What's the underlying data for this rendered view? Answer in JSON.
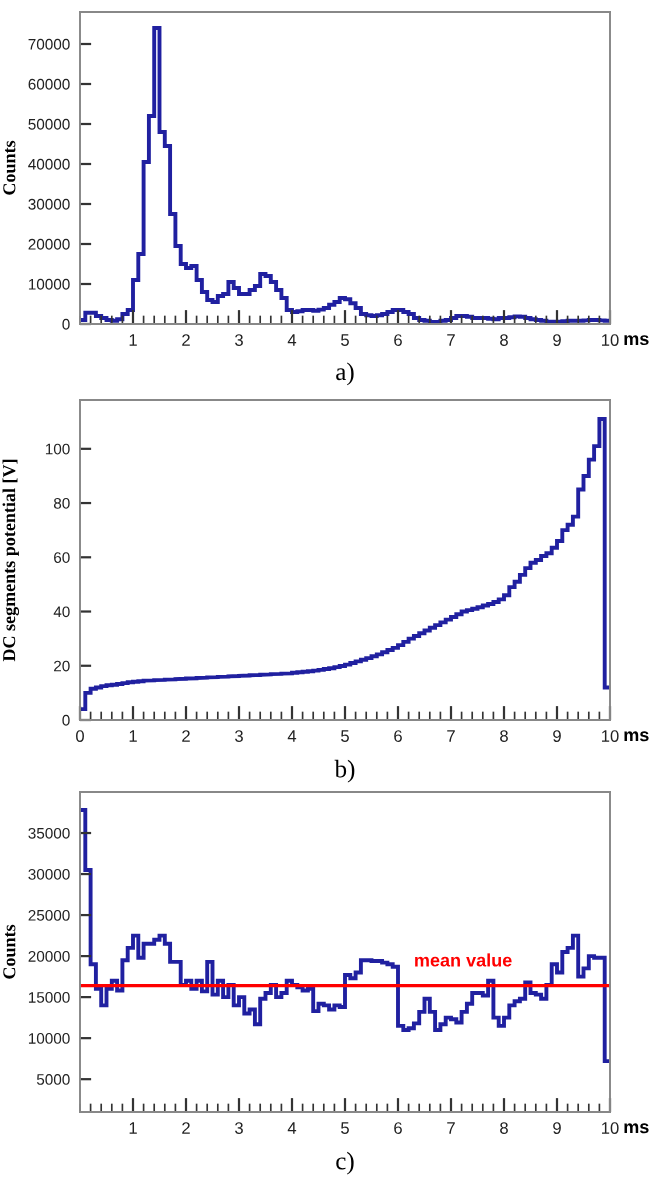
{
  "chart_data": [
    {
      "type": "histogram",
      "xlabel": "ms",
      "ylabel": "Counts",
      "annotations": [
        "a)"
      ],
      "color": "#2020a0",
      "grid": false,
      "bins": [
        0,
        0.1,
        0.2,
        0.3,
        0.4,
        0.5,
        0.6,
        0.7,
        0.8,
        0.9,
        1,
        1.1,
        1.2,
        1.3,
        1.4,
        1.5,
        1.6,
        1.7,
        1.8,
        1.9,
        2,
        2.1,
        2.2,
        2.3,
        2.4,
        2.5,
        2.6,
        2.7,
        2.8,
        2.9,
        3,
        3.1,
        3.2,
        3.3,
        3.4,
        3.5,
        3.6,
        3.7,
        3.8,
        3.9,
        4,
        4.1,
        4.2,
        4.3,
        4.4,
        4.5,
        4.6,
        4.7,
        4.8,
        4.9,
        5,
        5.1,
        5.2,
        5.3,
        5.4,
        5.5,
        5.6,
        5.7,
        5.8,
        5.9,
        6,
        6.1,
        6.2,
        6.3,
        6.4,
        6.5,
        6.6,
        6.7,
        6.8,
        6.9,
        7,
        7.1,
        7.2,
        7.3,
        7.4,
        7.5,
        7.6,
        7.7,
        7.8,
        7.9,
        8,
        8.1,
        8.2,
        8.3,
        8.4,
        8.5,
        8.6,
        8.7,
        8.8,
        8.9,
        9,
        9.1,
        9.2,
        9.3,
        9.4,
        9.5,
        9.6,
        9.7,
        9.8,
        9.9,
        10
      ],
      "values": [
        1000,
        2800,
        2800,
        2000,
        1500,
        1000,
        800,
        1200,
        2500,
        3500,
        11000,
        17500,
        40500,
        52000,
        74000,
        48000,
        44500,
        27500,
        19500,
        15000,
        14000,
        14500,
        11000,
        8000,
        6000,
        5500,
        7000,
        7500,
        10500,
        9000,
        7500,
        7500,
        8500,
        9500,
        12500,
        12000,
        10500,
        8500,
        6500,
        3500,
        3000,
        3200,
        3500,
        3500,
        3300,
        3600,
        4000,
        4800,
        5500,
        6500,
        6200,
        5200,
        4000,
        2500,
        2200,
        2000,
        2200,
        2500,
        3000,
        3500,
        3500,
        3000,
        2500,
        1500,
        1000,
        800,
        500,
        500,
        800,
        1000,
        1500,
        2000,
        2000,
        1800,
        1500,
        1500,
        1500,
        1300,
        1200,
        1500,
        1500,
        1700,
        1900,
        1800,
        1500,
        1200,
        1000,
        800,
        600,
        600,
        600,
        700,
        800,
        800,
        800,
        900,
        1000,
        1000,
        900,
        800
      ],
      "xlim": [
        0,
        10
      ],
      "ylim": [
        0,
        78000
      ],
      "xticks": [
        1,
        2,
        3,
        4,
        5,
        6,
        7,
        8,
        9,
        10
      ],
      "yticks": [
        0,
        10000,
        20000,
        30000,
        40000,
        50000,
        60000,
        70000
      ]
    },
    {
      "type": "histogram",
      "xlabel": "ms",
      "ylabel": "DC segments potential [V]",
      "annotations": [
        "b)"
      ],
      "color": "#2020a0",
      "grid": false,
      "bins": [
        0,
        0.1,
        0.2,
        0.3,
        0.4,
        0.5,
        0.6,
        0.7,
        0.8,
        0.9,
        1,
        1.1,
        1.2,
        1.3,
        1.4,
        1.5,
        1.6,
        1.7,
        1.8,
        1.9,
        2,
        2.1,
        2.2,
        2.3,
        2.4,
        2.5,
        2.6,
        2.7,
        2.8,
        2.9,
        3,
        3.1,
        3.2,
        3.3,
        3.4,
        3.5,
        3.6,
        3.7,
        3.8,
        3.9,
        4,
        4.1,
        4.2,
        4.3,
        4.4,
        4.5,
        4.6,
        4.7,
        4.8,
        4.9,
        5,
        5.1,
        5.2,
        5.3,
        5.4,
        5.5,
        5.6,
        5.7,
        5.8,
        5.9,
        6,
        6.1,
        6.2,
        6.3,
        6.4,
        6.5,
        6.6,
        6.7,
        6.8,
        6.9,
        7,
        7.1,
        7.2,
        7.3,
        7.4,
        7.5,
        7.6,
        7.7,
        7.8,
        7.9,
        8,
        8.1,
        8.2,
        8.3,
        8.4,
        8.5,
        8.6,
        8.7,
        8.8,
        8.9,
        9,
        9.1,
        9.2,
        9.3,
        9.4,
        9.5,
        9.6,
        9.7,
        9.8,
        9.9,
        10
      ],
      "values": [
        4,
        10,
        11.5,
        12,
        12.5,
        12.8,
        13,
        13.3,
        13.6,
        13.9,
        14.1,
        14.3,
        14.5,
        14.6,
        14.7,
        14.8,
        14.9,
        15,
        15.1,
        15.2,
        15.3,
        15.4,
        15.5,
        15.6,
        15.7,
        15.8,
        15.9,
        16,
        16.1,
        16.2,
        16.3,
        16.4,
        16.5,
        16.6,
        16.7,
        16.8,
        16.9,
        17,
        17.1,
        17.2,
        17.4,
        17.6,
        17.8,
        18,
        18.2,
        18.5,
        18.8,
        19.1,
        19.5,
        19.9,
        20.4,
        21,
        21.6,
        22.2,
        22.8,
        23.5,
        24.2,
        25,
        25.8,
        26.6,
        27.6,
        28.8,
        30,
        31,
        32,
        33,
        34,
        35,
        36,
        37,
        38,
        39,
        40,
        40.5,
        41,
        41.6,
        42.2,
        42.8,
        43.5,
        44.5,
        46,
        49,
        51,
        53.5,
        56,
        58,
        59,
        60.5,
        61.5,
        63.5,
        66,
        70,
        72,
        75,
        85,
        90,
        96,
        101,
        111,
        12
      ],
      "xlim": [
        0,
        10
      ],
      "ylim": [
        0,
        118
      ],
      "xticks": [
        0,
        1,
        2,
        3,
        4,
        5,
        6,
        7,
        8,
        9,
        10
      ],
      "yticks": [
        0,
        20,
        40,
        60,
        80,
        100
      ]
    },
    {
      "type": "histogram",
      "xlabel": "ms",
      "ylabel": "Counts",
      "annotations": [
        "c)"
      ],
      "color": "#2020a0",
      "grid": false,
      "bins": [
        0,
        0.1,
        0.2,
        0.3,
        0.4,
        0.5,
        0.6,
        0.7,
        0.8,
        0.9,
        1,
        1.1,
        1.2,
        1.3,
        1.4,
        1.5,
        1.6,
        1.7,
        1.8,
        1.9,
        2,
        2.1,
        2.2,
        2.3,
        2.4,
        2.5,
        2.6,
        2.7,
        2.8,
        2.9,
        3,
        3.1,
        3.2,
        3.3,
        3.4,
        3.5,
        3.6,
        3.7,
        3.8,
        3.9,
        4,
        4.1,
        4.2,
        4.3,
        4.4,
        4.5,
        4.6,
        4.7,
        4.8,
        4.9,
        5,
        5.1,
        5.2,
        5.3,
        5.4,
        5.5,
        5.6,
        5.7,
        5.8,
        5.9,
        6,
        6.1,
        6.2,
        6.3,
        6.4,
        6.5,
        6.6,
        6.7,
        6.8,
        6.9,
        7,
        7.1,
        7.2,
        7.3,
        7.4,
        7.5,
        7.6,
        7.7,
        7.8,
        7.9,
        8,
        8.1,
        8.2,
        8.3,
        8.4,
        8.5,
        8.6,
        8.7,
        8.8,
        8.9,
        9,
        9.1,
        9.2,
        9.3,
        9.4,
        9.5,
        9.6,
        9.7,
        9.8,
        9.9,
        10
      ],
      "values": [
        37800,
        30500,
        19000,
        16000,
        14000,
        16000,
        17000,
        15800,
        19500,
        21000,
        22500,
        19800,
        21500,
        21500,
        22000,
        22500,
        21500,
        19300,
        19300,
        16500,
        17000,
        16000,
        17000,
        15700,
        19300,
        15300,
        17000,
        15000,
        16500,
        14000,
        15000,
        13000,
        13500,
        11700,
        14800,
        15500,
        16500,
        15000,
        15500,
        17000,
        16500,
        16200,
        15800,
        16000,
        13300,
        14200,
        14000,
        13500,
        14000,
        13800,
        17700,
        17300,
        18000,
        19500,
        19500,
        19400,
        19400,
        19200,
        19000,
        18700,
        11500,
        11000,
        11200,
        11800,
        13200,
        14800,
        13200,
        11000,
        11700,
        12500,
        12300,
        11900,
        13200,
        14200,
        15500,
        15500,
        15200,
        17000,
        12500,
        11500,
        12500,
        14000,
        14500,
        14800,
        16800,
        15500,
        15300,
        14800,
        16500,
        19000,
        18000,
        20500,
        21000,
        22500,
        17500,
        18500,
        20000,
        19800,
        19800,
        7200
      ],
      "ref_lines": [
        {
          "axis": "y",
          "value": 16400,
          "label": "mean value",
          "color": "#ff0000"
        }
      ],
      "xlim": [
        0,
        10
      ],
      "ylim": [
        1000,
        40000
      ],
      "xticks": [
        1,
        2,
        3,
        4,
        5,
        6,
        7,
        8,
        9,
        10
      ],
      "yticks": [
        5000,
        10000,
        15000,
        20000,
        25000,
        30000,
        35000
      ]
    }
  ]
}
